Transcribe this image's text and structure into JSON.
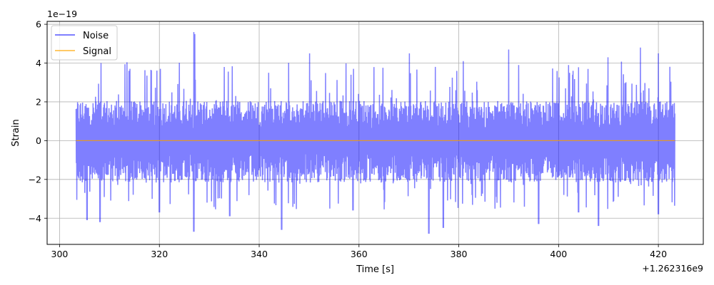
{
  "chart_data": {
    "type": "line",
    "title": "",
    "xlabel": "Time [s]",
    "ylabel": "Strain",
    "x_offset_label": "+1.262316e9",
    "y_scale_label": "1e−19",
    "xlim": [
      297.5,
      429
    ],
    "ylim": [
      -5.35,
      6.15
    ],
    "x_ticks": [
      300,
      320,
      340,
      360,
      380,
      400,
      420
    ],
    "x_tick_labels": [
      "300",
      "320",
      "340",
      "360",
      "380",
      "400",
      "420"
    ],
    "y_ticks": [
      -4,
      -2,
      0,
      2,
      4,
      6
    ],
    "y_tick_labels": [
      "−4",
      "−2",
      "0",
      "2",
      "4",
      "6"
    ],
    "grid": true,
    "legend_position": "top-left",
    "series": [
      {
        "name": "Noise",
        "color": "#0000ff",
        "opacity": 0.5,
        "x_range": [
          303.3,
          423.3
        ],
        "envelope": {
          "upper_typical": 1.8,
          "lower_typical": -1.9,
          "max": 5.6,
          "min": -4.8
        },
        "peaks": [
          [
            308.3,
            4.0
          ],
          [
            314.1,
            3.7
          ],
          [
            320.2,
            3.7
          ],
          [
            326.9,
            5.6
          ],
          [
            327.1,
            5.5
          ],
          [
            333.0,
            3.8
          ],
          [
            341.9,
            3.5
          ],
          [
            350.1,
            4.5
          ],
          [
            358.9,
            3.7
          ],
          [
            370.1,
            4.5
          ],
          [
            380.9,
            4.1
          ],
          [
            390.0,
            4.7
          ],
          [
            392.0,
            3.9
          ],
          [
            402.0,
            3.9
          ],
          [
            409.9,
            4.3
          ],
          [
            416.4,
            4.8
          ],
          [
            420.0,
            4.5
          ]
        ],
        "troughs": [
          [
            305.5,
            -4.1
          ],
          [
            308.1,
            -4.2
          ],
          [
            320.0,
            -3.7
          ],
          [
            326.9,
            -4.7
          ],
          [
            334.1,
            -3.9
          ],
          [
            344.5,
            -4.6
          ],
          [
            358.8,
            -3.6
          ],
          [
            374.0,
            -4.8
          ],
          [
            376.9,
            -4.5
          ],
          [
            396.0,
            -4.3
          ],
          [
            404.0,
            -3.7
          ],
          [
            408.0,
            -4.4
          ],
          [
            420.0,
            -3.8
          ]
        ]
      },
      {
        "name": "Signal",
        "color": "#ffa500",
        "opacity": 0.8,
        "x": [
          303.3,
          423.3
        ],
        "y": [
          0,
          0
        ]
      }
    ]
  }
}
